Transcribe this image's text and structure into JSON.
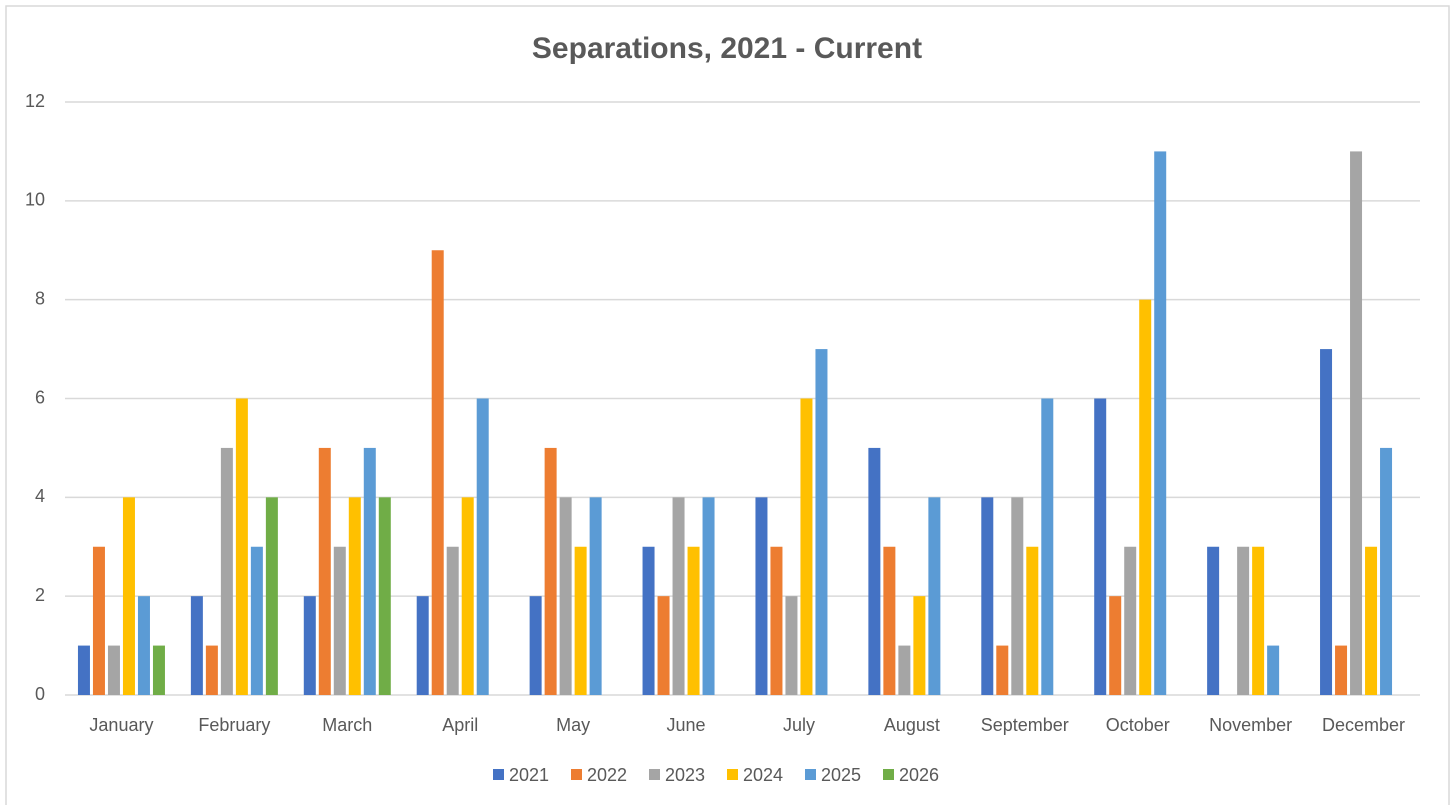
{
  "chart_data": {
    "type": "bar",
    "title": "Separations, 2021 - Current",
    "categories": [
      "January",
      "February",
      "March",
      "April",
      "May",
      "June",
      "July",
      "August",
      "September",
      "October",
      "November",
      "December"
    ],
    "series": [
      {
        "name": "2021",
        "color": "#4472c4",
        "values": [
          1,
          2,
          2,
          2,
          2,
          3,
          4,
          5,
          4,
          6,
          3,
          7
        ]
      },
      {
        "name": "2022",
        "color": "#ed7d31",
        "values": [
          3,
          1,
          5,
          9,
          5,
          2,
          3,
          3,
          1,
          2,
          0,
          1
        ]
      },
      {
        "name": "2023",
        "color": "#a5a5a5",
        "values": [
          1,
          5,
          3,
          3,
          4,
          4,
          2,
          1,
          4,
          3,
          3,
          11
        ]
      },
      {
        "name": "2024",
        "color": "#ffc000",
        "values": [
          4,
          6,
          4,
          4,
          3,
          3,
          6,
          2,
          3,
          8,
          3,
          3
        ]
      },
      {
        "name": "2025",
        "color": "#5b9bd5",
        "values": [
          2,
          3,
          5,
          6,
          4,
          4,
          7,
          4,
          6,
          11,
          1,
          5
        ]
      },
      {
        "name": "2026",
        "color": "#70ad47",
        "values": [
          1,
          4,
          4,
          null,
          null,
          null,
          null,
          null,
          null,
          null,
          null,
          null
        ]
      }
    ],
    "ylim": [
      0,
      12
    ],
    "yticks": [
      0,
      2,
      4,
      6,
      8,
      10,
      12
    ],
    "grid": true,
    "legend": "bottom"
  }
}
